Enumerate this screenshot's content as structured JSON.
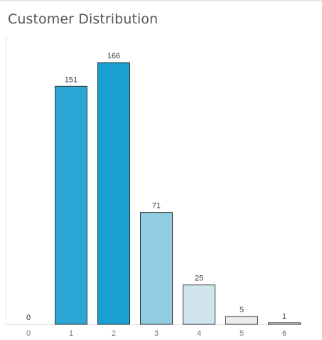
{
  "chart_data": {
    "type": "bar",
    "title": "Customer Distribution",
    "categories": [
      "0",
      "1",
      "2",
      "3",
      "4",
      "5",
      "6"
    ],
    "values": [
      0,
      151,
      166,
      71,
      25,
      5,
      1
    ],
    "colors": [
      "#2ca6d4",
      "#2ca6d4",
      "#1aa0d0",
      "#91cce1",
      "#cfe4ec",
      "#e9eded",
      "#f5f5f5"
    ],
    "xlabel": "",
    "ylabel": "",
    "ylim": [
      0,
      166
    ],
    "grid": false,
    "legend": "none",
    "data_labels": true
  },
  "colors": {
    "bar_outline": "#333333",
    "axis_line": "#e0e0e0",
    "label_text": "#333333",
    "tick_text": "#777777",
    "title_text": "#555555"
  }
}
